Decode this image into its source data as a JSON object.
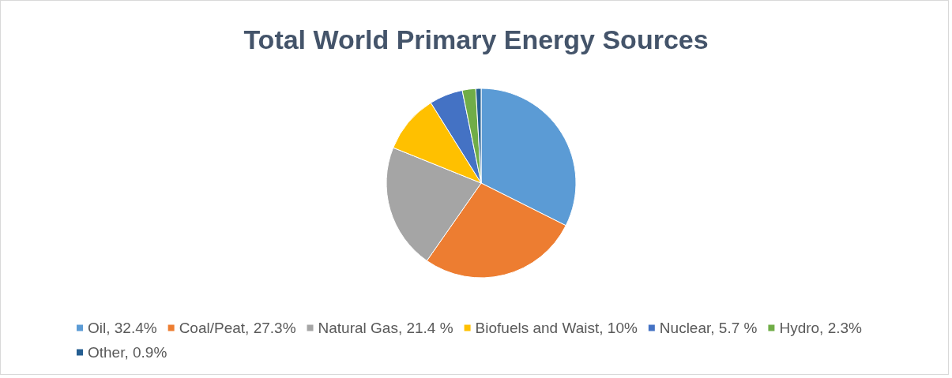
{
  "chart_data": {
    "type": "pie",
    "title": "Total World Primary Energy Sources",
    "categories": [
      "Oil, 32.4%",
      "Coal/Peat, 27.3%",
      "Natural Gas, 21.4 %",
      "Biofuels and Waist, 10%",
      "Nuclear, 5.7 %",
      "Hydro, 2.3%",
      "Other, 0.9%"
    ],
    "values": [
      32.4,
      27.3,
      21.4,
      10,
      5.7,
      2.3,
      0.9
    ],
    "colors": [
      "#5b9bd5",
      "#ed7d31",
      "#a5a5a5",
      "#ffc000",
      "#4472c4",
      "#70ad47",
      "#255e91"
    ],
    "legend": "bottom"
  }
}
